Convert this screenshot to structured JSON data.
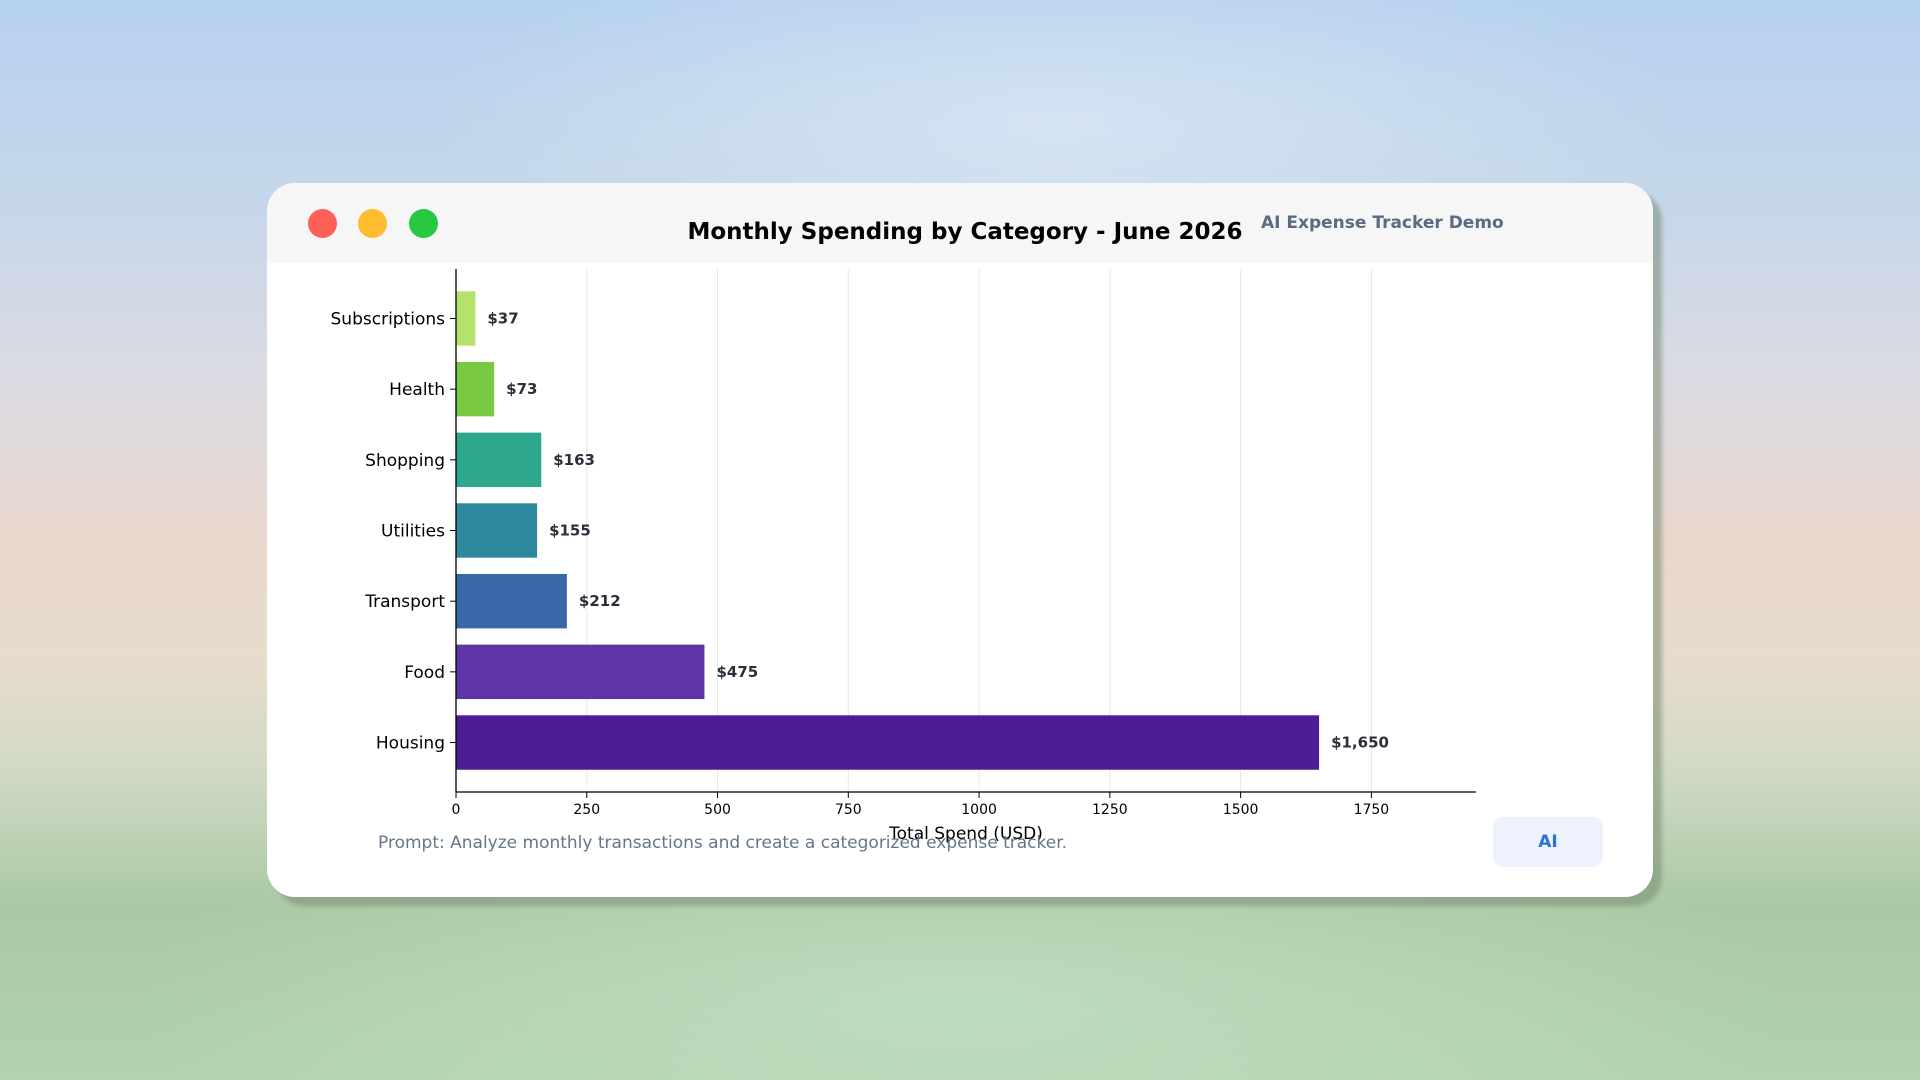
{
  "window": {
    "app_title": "AI Expense Tracker Demo",
    "prompt": "Prompt: Analyze monthly transactions and create a categorized expense tracker.",
    "ai_button_label": "AI"
  },
  "chart_data": {
    "type": "bar",
    "orientation": "horizontal",
    "title": "Monthly Spending by Category - June 2026",
    "xlabel": "Total Spend (USD)",
    "ylabel": "",
    "xlim": [
      0,
      1950
    ],
    "xticks": [
      0,
      250,
      500,
      750,
      1000,
      1250,
      1500,
      1750
    ],
    "grid": "vertical",
    "categories": [
      "Subscriptions",
      "Health",
      "Shopping",
      "Utilities",
      "Transport",
      "Food",
      "Housing"
    ],
    "values": [
      37,
      73,
      163,
      155,
      212,
      475,
      1650
    ],
    "value_labels": [
      "$37",
      "$73",
      "$163",
      "$155",
      "$212",
      "$475",
      "$1,650"
    ],
    "colors": [
      "#b5e26a",
      "#7ac943",
      "#2ba88d",
      "#2d8a9e",
      "#3868a8",
      "#5e35a6",
      "#4c1d96"
    ]
  }
}
